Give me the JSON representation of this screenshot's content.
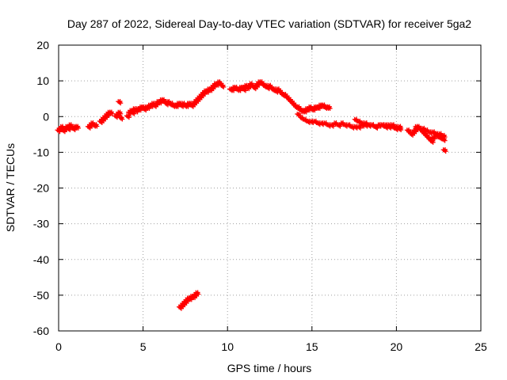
{
  "chart_data": {
    "type": "scatter",
    "title": "Day 287 of 2022, Sidereal Day-to-day VTEC variation (SDTVAR) for receiver 5ga2",
    "xlabel": "GPS time / hours",
    "ylabel": "SDTVAR / TECUs",
    "xlim": [
      0,
      25
    ],
    "ylim": [
      -60,
      20
    ],
    "x_ticks": [
      "0",
      "5",
      "10",
      "15",
      "20",
      "25"
    ],
    "y_ticks": [
      "20",
      "10",
      "0",
      "-10",
      "-20",
      "-30",
      "-40",
      "-50",
      "-60"
    ],
    "grid": true,
    "marker": "+",
    "color": "#ff0000",
    "series": [
      {
        "name": "SDTVAR",
        "x": [
          0.0,
          0.1,
          0.2,
          0.3,
          0.4,
          0.5,
          0.6,
          0.7,
          0.8,
          0.9,
          1.0,
          1.1,
          1.8,
          1.9,
          2.0,
          2.1,
          2.2,
          2.5,
          2.6,
          2.7,
          2.8,
          2.9,
          3.0,
          3.1,
          3.4,
          3.5,
          3.6,
          3.6,
          3.7,
          4.1,
          4.2,
          4.3,
          4.4,
          4.5,
          4.6,
          4.7,
          4.8,
          4.9,
          5.0,
          5.1,
          5.2,
          5.3,
          5.4,
          5.5,
          5.6,
          5.7,
          5.8,
          5.9,
          6.0,
          6.1,
          6.2,
          6.3,
          6.4,
          6.5,
          6.6,
          6.7,
          6.8,
          6.9,
          7.0,
          7.1,
          7.2,
          7.3,
          7.4,
          7.5,
          7.6,
          7.7,
          7.8,
          7.9,
          8.0,
          8.1,
          8.2,
          8.3,
          8.4,
          8.5,
          8.6,
          8.7,
          8.8,
          8.9,
          9.0,
          9.1,
          9.2,
          9.3,
          9.4,
          9.5,
          9.6,
          9.7,
          10.2,
          10.3,
          10.4,
          10.5,
          10.6,
          10.7,
          10.8,
          10.9,
          11.0,
          11.1,
          11.2,
          11.3,
          11.4,
          11.5,
          11.6,
          11.7,
          11.8,
          11.9,
          12.0,
          12.1,
          12.2,
          12.3,
          12.4,
          12.5,
          12.6,
          12.7,
          12.8,
          12.9,
          13.0,
          13.1,
          13.2,
          13.3,
          13.4,
          13.5,
          13.6,
          13.7,
          13.8,
          13.9,
          14.0,
          14.1,
          14.2,
          14.3,
          14.4,
          14.5,
          14.6,
          14.7,
          14.8,
          14.9,
          15.0,
          15.1,
          15.2,
          15.3,
          15.4,
          15.5,
          15.6,
          15.7,
          15.8,
          15.9,
          16.0,
          14.2,
          14.4,
          14.6,
          14.8,
          15.0,
          15.2,
          15.4,
          15.6,
          15.8,
          16.0,
          16.2,
          16.4,
          16.6,
          16.8,
          17.0,
          17.2,
          17.4,
          17.6,
          17.8,
          18.0,
          18.2,
          18.4,
          18.6,
          18.8,
          19.0,
          19.2,
          19.4,
          19.6,
          19.8,
          20.0,
          20.2,
          17.6,
          17.8,
          18.0,
          18.2,
          18.4,
          18.6,
          18.8,
          19.0,
          19.2,
          19.4,
          19.6,
          19.8,
          20.0,
          20.2,
          20.7,
          20.8,
          20.9,
          21.0,
          21.1,
          21.2,
          21.3,
          21.4,
          21.5,
          21.6,
          21.7,
          21.8,
          21.9,
          22.0,
          22.1,
          22.2,
          22.3,
          22.4,
          22.5,
          22.6,
          22.7,
          22.8,
          21.2,
          21.4,
          21.6,
          21.8,
          22.0,
          22.2,
          22.4,
          22.6,
          22.8,
          22.85,
          7.2,
          7.3,
          7.4,
          7.5,
          7.6,
          7.7,
          7.8,
          7.9,
          8.0,
          8.1,
          8.2
        ],
        "y": [
          -4,
          -3.5,
          -3,
          -4,
          -3.5,
          -3,
          -3.5,
          -2.5,
          -3,
          -3.5,
          -3,
          -3,
          -3,
          -2.5,
          -2,
          -2.5,
          -2.5,
          -1.5,
          -1,
          -0.5,
          0,
          0.5,
          1,
          1,
          0,
          0.5,
          1,
          4,
          -0.5,
          0,
          1,
          1.5,
          1,
          2,
          1.5,
          2,
          2,
          2.5,
          2.5,
          2,
          2.5,
          2.5,
          3,
          3,
          3.5,
          3,
          3.5,
          4,
          4,
          4.5,
          4.5,
          4,
          3.5,
          4,
          3.5,
          3.5,
          3,
          3,
          3,
          3.5,
          3.5,
          3,
          3.5,
          3,
          3,
          3.5,
          3.5,
          3,
          3.5,
          4,
          4.5,
          5,
          5.5,
          6,
          6.5,
          7,
          7,
          7.5,
          7.5,
          8,
          8.5,
          9,
          9,
          9.5,
          9,
          8.5,
          7.5,
          7.5,
          8,
          8,
          7.5,
          7.5,
          8,
          8,
          7.5,
          8.5,
          8,
          8.5,
          9,
          8.5,
          8,
          8.5,
          9,
          9.5,
          9.5,
          9,
          8.5,
          8.5,
          8,
          8.5,
          8,
          7.5,
          7.5,
          7,
          7.5,
          7,
          6.5,
          6,
          6,
          5.5,
          5,
          4.5,
          4,
          3.5,
          3,
          2.5,
          2.5,
          2,
          1.5,
          1.5,
          1.5,
          2,
          2,
          2.5,
          2,
          2,
          2.5,
          2.5,
          2.5,
          3,
          3,
          3,
          2.5,
          2.5,
          2.5,
          0.5,
          -0.5,
          -1,
          -1.5,
          -1.5,
          -1.5,
          -2,
          -2,
          -2,
          -2.5,
          -2.5,
          -2,
          -2.5,
          -2,
          -2.5,
          -2.5,
          -3,
          -3,
          -3,
          -2.5,
          -2,
          -2.5,
          -2.5,
          -3,
          -2.5,
          -2.5,
          -2.5,
          -2.5,
          -3,
          -3.5,
          -3,
          -1,
          -1.5,
          -2,
          -2.5,
          -2.5,
          -2.5,
          -3,
          -2.5,
          -2.5,
          -3,
          -3,
          -2.5,
          -3,
          -3.5,
          -4,
          -4.5,
          -5,
          -4.5,
          -4,
          -3.5,
          -3,
          -3.5,
          -4,
          -4.5,
          -5,
          -5.5,
          -6,
          -6.5,
          -7,
          -6,
          -5,
          -5.5,
          -5.5,
          -6,
          -6,
          -6.5,
          -3,
          -3.5,
          -3.5,
          -4,
          -4.5,
          -4.5,
          -5,
          -5,
          -5.5,
          -9.5,
          -53.5,
          -53,
          -52.5,
          -52,
          -51.5,
          -51,
          -51,
          -50.5,
          -50.5,
          -50,
          -49.5
        ]
      }
    ]
  }
}
